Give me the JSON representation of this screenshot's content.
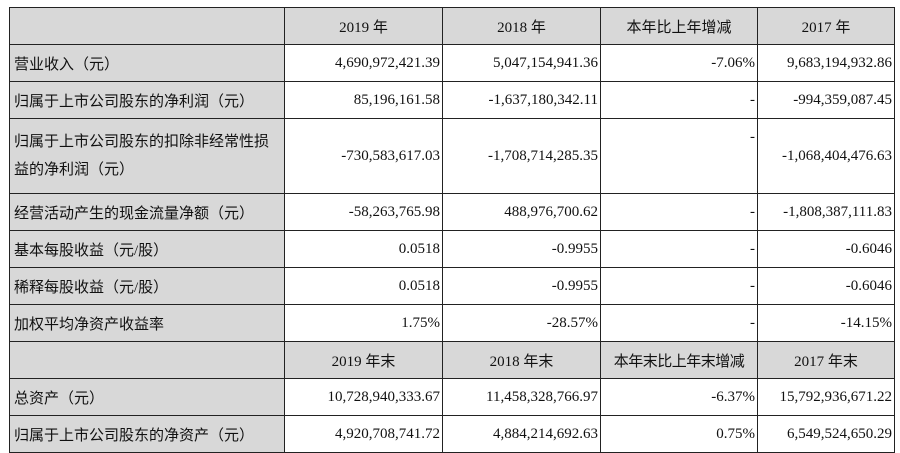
{
  "header1": [
    "",
    "2019 年",
    "2018 年",
    "本年比上年增减",
    "2017 年"
  ],
  "rows1": [
    {
      "label": "营业收入（元）",
      "v2019": "4,690,972,421.39",
      "v2018": "5,047,154,941.36",
      "change": "-7.06%",
      "v2017": "9,683,194,932.86"
    },
    {
      "label": "归属于上市公司股东的净利润（元）",
      "v2019": "85,196,161.58",
      "v2018": "-1,637,180,342.11",
      "change": "-",
      "v2017": "-994,359,087.45"
    },
    {
      "label": "归属于上市公司股东的扣除非经常性损益的净利润（元）",
      "v2019": "-730,583,617.03",
      "v2018": "-1,708,714,285.35",
      "change": "-",
      "v2017": "-1,068,404,476.63"
    },
    {
      "label": "经营活动产生的现金流量净额（元）",
      "v2019": "-58,263,765.98",
      "v2018": "488,976,700.62",
      "change": "-",
      "v2017": "-1,808,387,111.83"
    },
    {
      "label": "基本每股收益（元/股）",
      "v2019": "0.0518",
      "v2018": "-0.9955",
      "change": "-",
      "v2017": "-0.6046"
    },
    {
      "label": "稀释每股收益（元/股）",
      "v2019": "0.0518",
      "v2018": "-0.9955",
      "change": "-",
      "v2017": "-0.6046"
    },
    {
      "label": "加权平均净资产收益率",
      "v2019": "1.75%",
      "v2018": "-28.57%",
      "change": "-",
      "v2017": "-14.15%"
    }
  ],
  "header2": [
    "",
    "2019 年末",
    "2018 年末",
    "本年末比上年末增减",
    "2017 年末"
  ],
  "rows2": [
    {
      "label": "总资产（元）",
      "v2019": "10,728,940,333.67",
      "v2018": "11,458,328,766.97",
      "change": "-6.37%",
      "v2017": "15,792,936,671.22"
    },
    {
      "label": "归属于上市公司股东的净资产（元）",
      "v2019": "4,920,708,741.72",
      "v2018": "4,884,214,692.63",
      "change": "0.75%",
      "v2017": "6,549,524,650.29"
    }
  ]
}
